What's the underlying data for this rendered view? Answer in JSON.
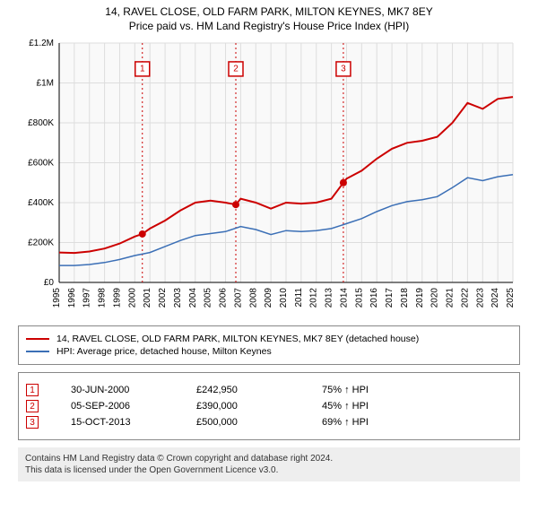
{
  "title_line1": "14, RAVEL CLOSE, OLD FARM PARK, MILTON KEYNES, MK7 8EY",
  "title_line2": "Price paid vs. HM Land Registry's House Price Index (HPI)",
  "chart": {
    "type": "line",
    "background_color": "#f9f9f9",
    "grid_color": "#dddddd",
    "axis_color": "#000000",
    "label_fontsize": 10,
    "xlim": [
      1995,
      2025
    ],
    "ylim": [
      0,
      1200000
    ],
    "ytick_step": 200000,
    "ytick_labels": [
      "£0",
      "£200K",
      "£400K",
      "£600K",
      "£800K",
      "£1M",
      "£1.2M"
    ],
    "xtick_step": 1,
    "xtick_years": [
      1995,
      1996,
      1997,
      1998,
      1999,
      2000,
      2001,
      2002,
      2003,
      2004,
      2005,
      2006,
      2007,
      2008,
      2009,
      2010,
      2011,
      2012,
      2013,
      2014,
      2015,
      2016,
      2017,
      2018,
      2019,
      2020,
      2021,
      2022,
      2023,
      2024,
      2025
    ],
    "series": [
      {
        "name": "14, RAVEL CLOSE, OLD FARM PARK, MILTON KEYNES, MK7 8EY (detached house)",
        "color": "#cc0000",
        "line_width": 2,
        "points": [
          [
            1995,
            150000
          ],
          [
            1996,
            148000
          ],
          [
            1997,
            155000
          ],
          [
            1998,
            170000
          ],
          [
            1999,
            195000
          ],
          [
            2000,
            230000
          ],
          [
            2000.5,
            242950
          ],
          [
            2001,
            270000
          ],
          [
            2002,
            310000
          ],
          [
            2003,
            360000
          ],
          [
            2004,
            400000
          ],
          [
            2005,
            410000
          ],
          [
            2006,
            400000
          ],
          [
            2006.68,
            390000
          ],
          [
            2007,
            420000
          ],
          [
            2008,
            400000
          ],
          [
            2009,
            370000
          ],
          [
            2010,
            400000
          ],
          [
            2011,
            395000
          ],
          [
            2012,
            400000
          ],
          [
            2013,
            420000
          ],
          [
            2013.79,
            500000
          ],
          [
            2014,
            520000
          ],
          [
            2015,
            560000
          ],
          [
            2016,
            620000
          ],
          [
            2017,
            670000
          ],
          [
            2018,
            700000
          ],
          [
            2019,
            710000
          ],
          [
            2020,
            730000
          ],
          [
            2021,
            800000
          ],
          [
            2022,
            900000
          ],
          [
            2023,
            870000
          ],
          [
            2024,
            920000
          ],
          [
            2025,
            930000
          ]
        ]
      },
      {
        "name": "HPI: Average price, detached house, Milton Keynes",
        "color": "#3b6fb6",
        "line_width": 1.5,
        "points": [
          [
            1995,
            85000
          ],
          [
            1996,
            85000
          ],
          [
            1997,
            90000
          ],
          [
            1998,
            100000
          ],
          [
            1999,
            115000
          ],
          [
            2000,
            135000
          ],
          [
            2001,
            150000
          ],
          [
            2002,
            180000
          ],
          [
            2003,
            210000
          ],
          [
            2004,
            235000
          ],
          [
            2005,
            245000
          ],
          [
            2006,
            255000
          ],
          [
            2007,
            280000
          ],
          [
            2008,
            265000
          ],
          [
            2009,
            240000
          ],
          [
            2010,
            260000
          ],
          [
            2011,
            255000
          ],
          [
            2012,
            260000
          ],
          [
            2013,
            270000
          ],
          [
            2014,
            295000
          ],
          [
            2015,
            320000
          ],
          [
            2016,
            355000
          ],
          [
            2017,
            385000
          ],
          [
            2018,
            405000
          ],
          [
            2019,
            415000
          ],
          [
            2020,
            430000
          ],
          [
            2021,
            475000
          ],
          [
            2022,
            525000
          ],
          [
            2023,
            510000
          ],
          [
            2024,
            530000
          ],
          [
            2025,
            540000
          ]
        ]
      }
    ],
    "sale_markers": [
      {
        "num": "1",
        "x": 2000.5,
        "y": 242950,
        "color": "#cc0000",
        "box_y": 1070000
      },
      {
        "num": "2",
        "x": 2006.68,
        "y": 390000,
        "color": "#cc0000",
        "box_y": 1070000
      },
      {
        "num": "3",
        "x": 2013.79,
        "y": 500000,
        "color": "#cc0000",
        "box_y": 1070000
      }
    ],
    "sale_point_color": "#cc0000",
    "sale_point_radius": 4
  },
  "legend": [
    {
      "color": "#cc0000",
      "label": "14, RAVEL CLOSE, OLD FARM PARK, MILTON KEYNES, MK7 8EY (detached house)"
    },
    {
      "color": "#3b6fb6",
      "label": "HPI: Average price, detached house, Milton Keynes"
    }
  ],
  "sales_table": [
    {
      "num": "1",
      "date": "30-JUN-2000",
      "price": "£242,950",
      "delta": "75% ↑ HPI",
      "color": "#cc0000"
    },
    {
      "num": "2",
      "date": "05-SEP-2006",
      "price": "£390,000",
      "delta": "45% ↑ HPI",
      "color": "#cc0000"
    },
    {
      "num": "3",
      "date": "15-OCT-2013",
      "price": "£500,000",
      "delta": "69% ↑ HPI",
      "color": "#cc0000"
    }
  ],
  "footer_line1": "Contains HM Land Registry data © Crown copyright and database right 2024.",
  "footer_line2": "This data is licensed under the Open Government Licence v3.0."
}
